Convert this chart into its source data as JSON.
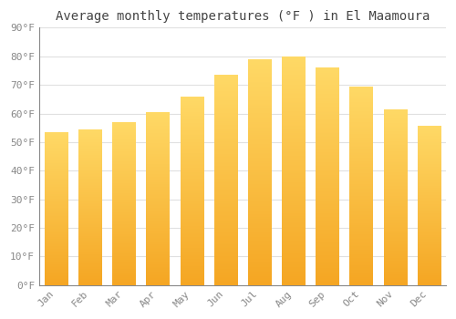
{
  "title": "Average monthly temperatures (°F ) in El Maamoura",
  "months": [
    "Jan",
    "Feb",
    "Mar",
    "Apr",
    "May",
    "Jun",
    "Jul",
    "Aug",
    "Sep",
    "Oct",
    "Nov",
    "Dec"
  ],
  "values": [
    53.5,
    54.5,
    57,
    60.5,
    66,
    73.5,
    79,
    80,
    76,
    69.5,
    61.5,
    55.5
  ],
  "bar_color": "#FDB813",
  "background_color": "#ffffff",
  "ylim": [
    0,
    90
  ],
  "yticks": [
    0,
    10,
    20,
    30,
    40,
    50,
    60,
    70,
    80,
    90
  ],
  "ytick_labels": [
    "0°F",
    "10°F",
    "20°F",
    "30°F",
    "40°F",
    "50°F",
    "60°F",
    "70°F",
    "80°F",
    "90°F"
  ],
  "title_fontsize": 10,
  "tick_fontsize": 8,
  "grid_color": "#e0e0e0",
  "font_family": "monospace",
  "bar_bottom_color": "#F5A623",
  "bar_top_color": "#FFD966"
}
